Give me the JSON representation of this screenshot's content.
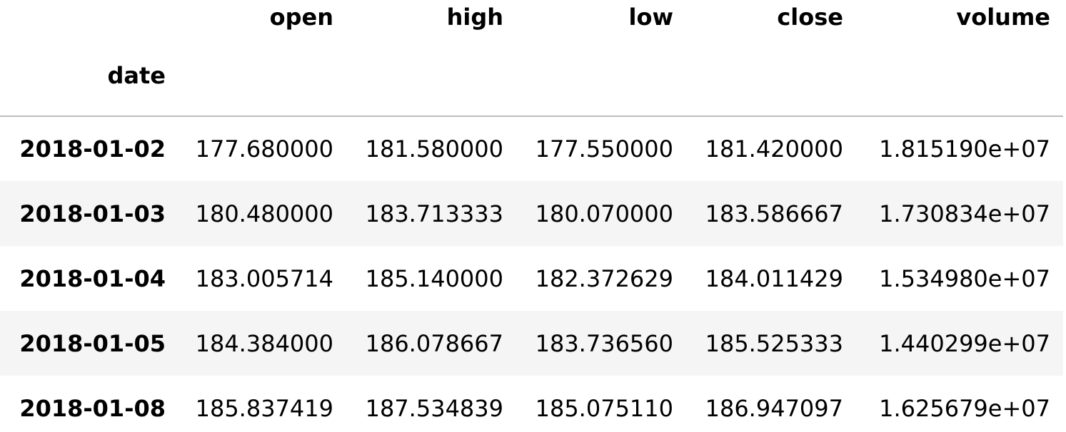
{
  "table": {
    "columns": [
      "open",
      "high",
      "low",
      "close",
      "volume"
    ],
    "index_name": "date",
    "rows": [
      {
        "date": "2018-01-02",
        "cells": [
          "177.680000",
          "181.580000",
          "177.550000",
          "181.420000",
          "1.815190e+07"
        ]
      },
      {
        "date": "2018-01-03",
        "cells": [
          "180.480000",
          "183.713333",
          "180.070000",
          "183.586667",
          "1.730834e+07"
        ]
      },
      {
        "date": "2018-01-04",
        "cells": [
          "183.005714",
          "185.140000",
          "182.372629",
          "184.011429",
          "1.534980e+07"
        ]
      },
      {
        "date": "2018-01-05",
        "cells": [
          "184.384000",
          "186.078667",
          "183.736560",
          "185.525333",
          "1.440299e+07"
        ]
      },
      {
        "date": "2018-01-08",
        "cells": [
          "185.837419",
          "187.534839",
          "185.075110",
          "186.947097",
          "1.625679e+07"
        ]
      }
    ]
  }
}
